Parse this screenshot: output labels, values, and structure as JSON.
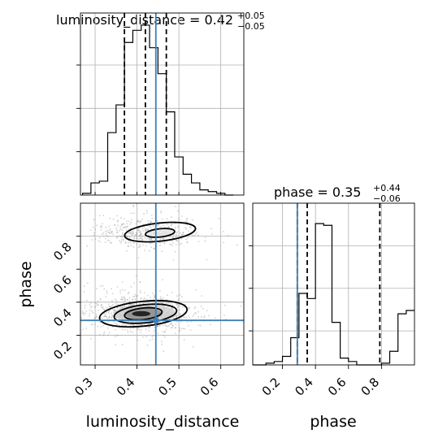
{
  "chart_data": [
    {
      "type": "histogram",
      "panel": "luminosity_distance-marginal",
      "title_main": "luminosity_distance = 0.42",
      "title_sup": "+0.05",
      "title_sub": "−0.05",
      "bins_x_start": 0.27,
      "bin_width": 0.02,
      "values": [
        0.01,
        0.07,
        0.08,
        0.36,
        0.52,
        0.88,
        0.95,
        0.98,
        0.85,
        0.7,
        0.48,
        0.22,
        0.12,
        0.07,
        0.03,
        0.02,
        0.01,
        0.0
      ],
      "ylim": [
        0,
        1.05
      ],
      "quantile_lines": [
        0.37,
        0.42,
        0.47
      ],
      "truth": 0.445,
      "xlim": [
        0.265,
        0.655
      ]
    },
    {
      "type": "histogram",
      "panel": "phase-marginal",
      "title_main": "phase = 0.35",
      "title_sup": "+0.44",
      "title_sub": "−0.06",
      "bins_x_start": 0.0,
      "bin_width": 0.05,
      "values": [
        0.0,
        0.0,
        0.01,
        0.02,
        0.05,
        0.16,
        0.42,
        0.39,
        0.83,
        0.82,
        0.25,
        0.04,
        0.02,
        0.0,
        0.0,
        0.0,
        0.01,
        0.08,
        0.3,
        0.32,
        0.11,
        0.04,
        0.01,
        0.0
      ],
      "ylim": [
        0,
        0.95
      ],
      "quantile_lines": [
        0.29,
        0.35,
        0.79
      ],
      "truth": 0.29,
      "xlim": [
        0.02,
        1.0
      ],
      "xticks": [
        "0.2",
        "0.4",
        "0.6",
        "0.8"
      ],
      "xlabel": "phase"
    },
    {
      "type": "scatter-contour",
      "panel": "joint",
      "x_label": "luminosity_distance",
      "y_label": "phase",
      "xlim": [
        0.265,
        0.655
      ],
      "ylim": [
        0.02,
        1.0
      ],
      "xticks": [
        "0.3",
        "0.4",
        "0.5",
        "0.6"
      ],
      "yticks": [
        "0.2",
        "0.4",
        "0.6",
        "0.8"
      ],
      "truth": {
        "x": 0.445,
        "y": 0.29
      },
      "clusters": [
        {
          "center_x": 0.42,
          "center_y": 0.82,
          "spread_x": 0.06,
          "spread_y": 0.045,
          "weight": 0.32
        },
        {
          "center_x": 0.41,
          "center_y": 0.33,
          "spread_x": 0.055,
          "spread_y": 0.05,
          "weight": 0.68
        }
      ],
      "contours": [
        {
          "level": "outer",
          "cx": 0.455,
          "cy": 0.825,
          "rx": 0.085,
          "ry": 0.055
        },
        {
          "level": "inner",
          "cx": 0.455,
          "cy": 0.82,
          "rx": 0.035,
          "ry": 0.025
        },
        {
          "level": "outer",
          "cx": 0.415,
          "cy": 0.33,
          "rx": 0.105,
          "ry": 0.075
        },
        {
          "level": "mid",
          "cx": 0.42,
          "cy": 0.33,
          "rx": 0.075,
          "ry": 0.055
        },
        {
          "level": "inner",
          "cx": 0.415,
          "cy": 0.33,
          "rx": 0.045,
          "ry": 0.035
        }
      ]
    }
  ]
}
